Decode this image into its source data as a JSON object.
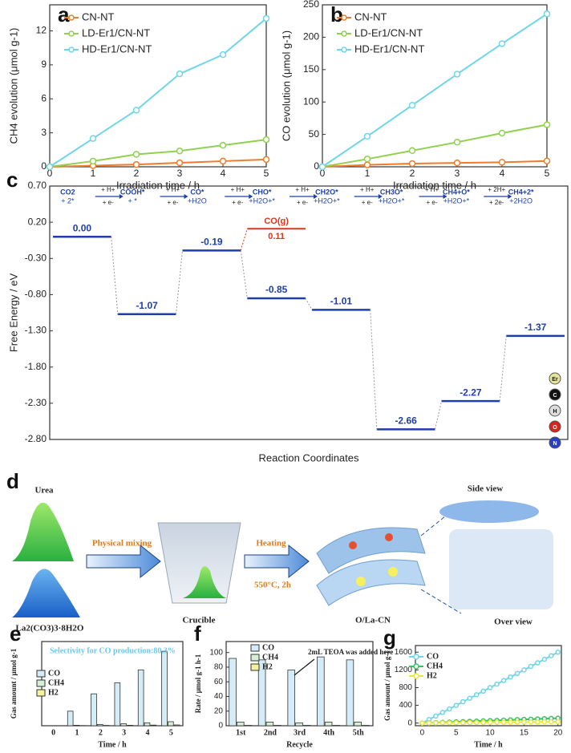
{
  "chart_data": [
    {
      "type": "line",
      "panel": "a",
      "xlabel": "Irradiation time / h",
      "ylabel": "CH4 evolution (μmol g-1)",
      "legend": "upper left",
      "x": [
        0,
        1,
        2,
        3,
        4,
        5
      ],
      "xlim": [
        0,
        5
      ],
      "xticks": [
        0,
        1,
        2,
        3,
        4,
        5
      ],
      "ylim": [
        0,
        14.3
      ],
      "yticks": [
        0,
        3,
        6,
        9,
        12
      ],
      "series": [
        {
          "name": "CN-NT",
          "color": "#f07c2a",
          "values": [
            0,
            0.1,
            0.2,
            0.35,
            0.5,
            0.65
          ]
        },
        {
          "name": "LD-Er1/CN-NT",
          "color": "#8fd14f",
          "values": [
            0,
            0.5,
            1.1,
            1.4,
            1.9,
            2.4
          ]
        },
        {
          "name": "HD-Er1/CN-NT",
          "color": "#6fd6e8",
          "values": [
            0,
            2.5,
            5.0,
            8.2,
            9.9,
            13.1
          ]
        }
      ]
    },
    {
      "type": "line",
      "panel": "b",
      "xlabel": "Irradiation time / h",
      "ylabel": "CO evolution (μmol g-1)",
      "legend": "upper left",
      "x": [
        0,
        1,
        2,
        3,
        4,
        5
      ],
      "xlim": [
        0,
        5
      ],
      "xticks": [
        0,
        1,
        2,
        3,
        4,
        5
      ],
      "ylim": [
        0,
        250
      ],
      "yticks": [
        0,
        50,
        100,
        150,
        200,
        250
      ],
      "series": [
        {
          "name": "CN-NT",
          "color": "#f07c2a",
          "values": [
            0,
            3,
            5,
            6,
            7,
            9
          ]
        },
        {
          "name": "LD-Er1/CN-NT",
          "color": "#8fd14f",
          "values": [
            0,
            12,
            25,
            38,
            52,
            65
          ]
        },
        {
          "name": "HD-Er1/CN-NT",
          "color": "#6fd6e8",
          "values": [
            0,
            47,
            95,
            143,
            190,
            236
          ]
        }
      ]
    },
    {
      "type": "energy",
      "panel": "c",
      "xlabel": "Reaction Coordinates",
      "ylabel": "Free Energy / eV",
      "color": "#1f3fa8",
      "ylim": [
        -2.8,
        0.7
      ],
      "yticks": [
        {
          "value": 0.7,
          "label": "0.70"
        },
        {
          "value": 0.2,
          "label": "0.20"
        },
        {
          "value": -0.3,
          "label": "-0.30"
        },
        {
          "value": -0.8,
          "label": "-0.80"
        },
        {
          "value": -1.3,
          "label": "-1.30"
        },
        {
          "value": -1.8,
          "label": "-1.80"
        },
        {
          "value": -2.3,
          "label": "-2.30"
        },
        {
          "value": -2.8,
          "label": "-2.80"
        }
      ],
      "values": [
        0,
        -1.07,
        -0.19,
        -0.85,
        -1.01,
        -2.66,
        -2.27,
        -1.37
      ],
      "value_labels": [
        "0.00",
        "-1.07",
        "-0.19",
        "-0.85",
        "-1.01",
        "-2.66",
        "-2.27",
        "-1.37"
      ],
      "steps": [
        [
          "CO2",
          "+ 2*"
        ],
        [
          "COOH*",
          "+ *"
        ],
        [
          "CO*",
          "+H2O"
        ],
        [
          "CHO*",
          "+H2O+*"
        ],
        [
          "CH2O*",
          "+H2O+*"
        ],
        [
          "CH3O*",
          "+H2O+*"
        ],
        [
          "CH4+O*",
          "+H2O+*"
        ],
        [
          "CH4+2*",
          "+2H2O"
        ]
      ],
      "arrows": [
        [
          "+ H+",
          "+ e-"
        ],
        [
          "+ H+",
          "+ e-"
        ],
        [
          "+ H+",
          "+ e-"
        ],
        [
          "+ H+",
          "+ e-"
        ],
        [
          "+ H+",
          "+ e-"
        ],
        [
          "+ H+",
          "+ e-"
        ],
        [
          "+ 2H+",
          "+ 2e-"
        ]
      ],
      "branch": {
        "label": "CO(g)",
        "value": 0.11,
        "value_label": "0.11",
        "color": "#d9351c"
      },
      "atoms": [
        {
          "label": "Er",
          "color": "#e6e39a"
        },
        {
          "label": "C",
          "color": "#111111"
        },
        {
          "label": "H",
          "color": "#dddddd"
        },
        {
          "label": "O",
          "color": "#d9231c"
        },
        {
          "label": "N",
          "color": "#2840c8"
        }
      ]
    },
    {
      "type": "bar",
      "panel": "e",
      "xlabel": "Time / h",
      "ylabel": "Gas amount / μmol g-1",
      "legend": "center left",
      "annotation": "Selectivity for CO production:80.3%",
      "categories": [
        "0",
        "1",
        "2",
        "3",
        "4",
        "5"
      ],
      "ylim": [
        0,
        520
      ],
      "series": [
        {
          "name": "CO",
          "color": "#d4ecf7",
          "values": [
            null,
            90,
            197,
            265,
            345,
            460
          ]
        },
        {
          "name": "CH4",
          "color": "#d6f0d8",
          "values": [
            null,
            3,
            8,
            12,
            18,
            25
          ]
        },
        {
          "name": "H2",
          "color": "#f4f39c",
          "values": [
            null,
            1,
            2,
            3,
            4,
            5
          ]
        }
      ]
    },
    {
      "type": "bar",
      "panel": "f",
      "xlabel": "Recycle",
      "ylabel": "Rate / μmol g-1 h-1",
      "legend": "upper center",
      "annotation": "2mL TEOA was added here",
      "categories": [
        "1st",
        "2nd",
        "3rd",
        "4th",
        "5th"
      ],
      "ylim": [
        0,
        115
      ],
      "yticks": [
        0,
        20,
        40,
        60,
        80,
        100
      ],
      "series": [
        {
          "name": "CO",
          "color": "#d4ecf7",
          "values": [
            92,
            90,
            76,
            94,
            90
          ]
        },
        {
          "name": "CH4",
          "color": "#d6f0d8",
          "values": [
            5,
            5,
            4,
            5,
            5
          ]
        },
        {
          "name": "H2",
          "color": "#f4f39c",
          "values": [
            0.5,
            0.5,
            0.5,
            0.5,
            0.5
          ]
        }
      ]
    },
    {
      "type": "line",
      "panel": "g",
      "xlabel": "Time / h",
      "ylabel": "Gas amount / μmol g-1",
      "legend": "upper left",
      "x": [
        0,
        1,
        2,
        3,
        4,
        5,
        6,
        7,
        8,
        9,
        10,
        11,
        12,
        13,
        14,
        15,
        16,
        17,
        18,
        19,
        20
      ],
      "xlim": [
        -1,
        20.5
      ],
      "xticks": [
        0,
        5,
        10,
        15,
        20
      ],
      "ylim": [
        -60,
        1750
      ],
      "yticks": [
        0,
        400,
        800,
        1200,
        1600
      ],
      "series": [
        {
          "name": "CO",
          "color": "#6fd6e8",
          "values": [
            0,
            80,
            160,
            240,
            320,
            400,
            480,
            560,
            640,
            720,
            800,
            880,
            960,
            1040,
            1120,
            1200,
            1280,
            1360,
            1440,
            1520,
            1600
          ]
        },
        {
          "name": "CH4",
          "color": "#3cc060",
          "values": [
            0,
            6,
            11,
            17,
            22,
            28,
            33,
            39,
            44,
            50,
            55,
            61,
            66,
            72,
            77,
            83,
            88,
            94,
            99,
            105,
            110
          ]
        },
        {
          "name": "H2",
          "color": "#e8e83c",
          "values": [
            0,
            1.5,
            3,
            4.5,
            6,
            7.5,
            9,
            10.5,
            12,
            13.5,
            15,
            16.5,
            18,
            19.5,
            21,
            22.5,
            24,
            25.5,
            27,
            28.5,
            30
          ]
        }
      ]
    }
  ],
  "diagram": {
    "panel": "d",
    "urea": "Urea",
    "la": "La2(CO3)3·8H2O",
    "mixing": "Physical mixing",
    "crucible": "Crucible",
    "heating": "Heating",
    "condition": "550°C, 2h",
    "product": "O/La-CN",
    "side": "Side view",
    "over": "Over view"
  }
}
